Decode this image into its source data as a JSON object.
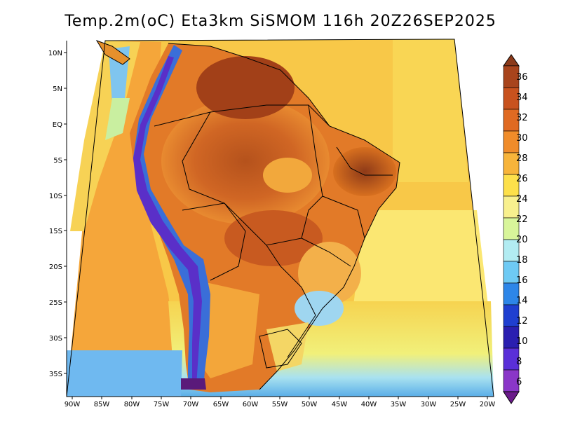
{
  "title": "Temp.2m(oC) Eta3km SiSMOM 116h 20Z26SEP2025",
  "axes": {
    "lon_labels": [
      "90W",
      "85W",
      "80W",
      "75W",
      "70W",
      "65W",
      "60W",
      "55W",
      "50W",
      "45W",
      "40W",
      "35W",
      "30W",
      "25W",
      "20W"
    ],
    "lat_labels": [
      "10N",
      "5N",
      "EQ",
      "5S",
      "10S",
      "15S",
      "20S",
      "25S",
      "30S",
      "35S"
    ]
  },
  "colorbar": {
    "levels": [
      "36",
      "34",
      "32",
      "30",
      "28",
      "26",
      "24",
      "22",
      "20",
      "18",
      "16",
      "14",
      "12",
      "10",
      "8",
      "6"
    ],
    "colors": [
      "#8b3a1a",
      "#a8441c",
      "#c8521e",
      "#e06a22",
      "#f08c2a",
      "#f7b43a",
      "#fde04a",
      "#f8f08e",
      "#d8f59a",
      "#b2ecf2",
      "#6ecaf4",
      "#2d86e8",
      "#1f3fd0",
      "#2a1fb0",
      "#5a2fd8",
      "#8a36c8",
      "#6a1a8a"
    ]
  },
  "chart_data": {
    "type": "heatmap",
    "title": "Temp.2m(oC) Eta3km SiSMOM 116h 20Z26SEP2025",
    "variable": "2 m air temperature",
    "units": "oC",
    "model": "Eta3km",
    "forecast_hour": "116h",
    "valid_time": "20Z26SEP2025",
    "lon_range": [
      "90W",
      "20W"
    ],
    "lat_range": [
      "38S",
      "12N"
    ],
    "color_levels": [
      6,
      8,
      10,
      12,
      14,
      16,
      18,
      20,
      22,
      24,
      26,
      28,
      30,
      32,
      34,
      36
    ]
  }
}
